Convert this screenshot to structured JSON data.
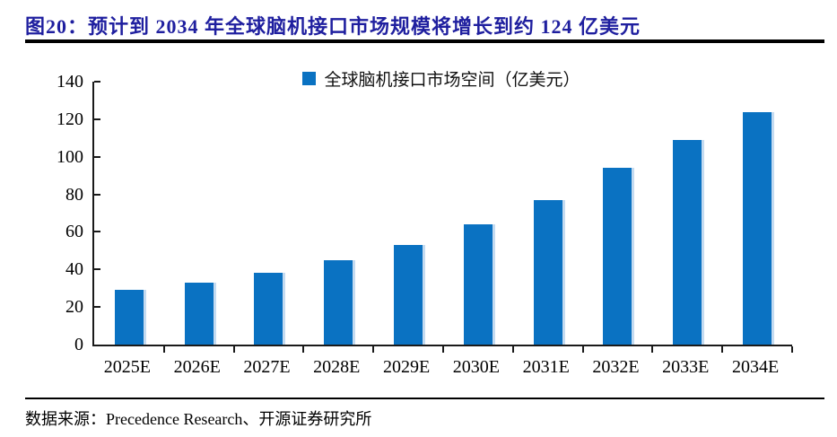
{
  "figure": {
    "title": "图20：预计到 2034 年全球脑机接口市场规模将增长到约 124 亿美元",
    "source": "数据来源：Precedence Research、开源证券研究所"
  },
  "chart_data": {
    "type": "bar",
    "title": "",
    "legend": "全球脑机接口市场空间（亿美元）",
    "legend_position": "top-center",
    "categories": [
      "2025E",
      "2026E",
      "2027E",
      "2028E",
      "2029E",
      "2030E",
      "2031E",
      "2032E",
      "2033E",
      "2034E"
    ],
    "values": [
      29,
      33,
      38,
      45,
      53,
      64,
      77,
      94,
      109,
      124
    ],
    "xlabel": "",
    "ylabel": "",
    "ylim": [
      0,
      140
    ],
    "yticks": [
      0,
      20,
      40,
      60,
      80,
      100,
      120,
      140
    ],
    "grid": false,
    "bar_color": "#0A72C2"
  },
  "colors": {
    "title_text": "#1F1F9F",
    "bar": "#0A72C2",
    "axis": "#1A1A1A",
    "rule": "#000000",
    "text": "#000000"
  }
}
